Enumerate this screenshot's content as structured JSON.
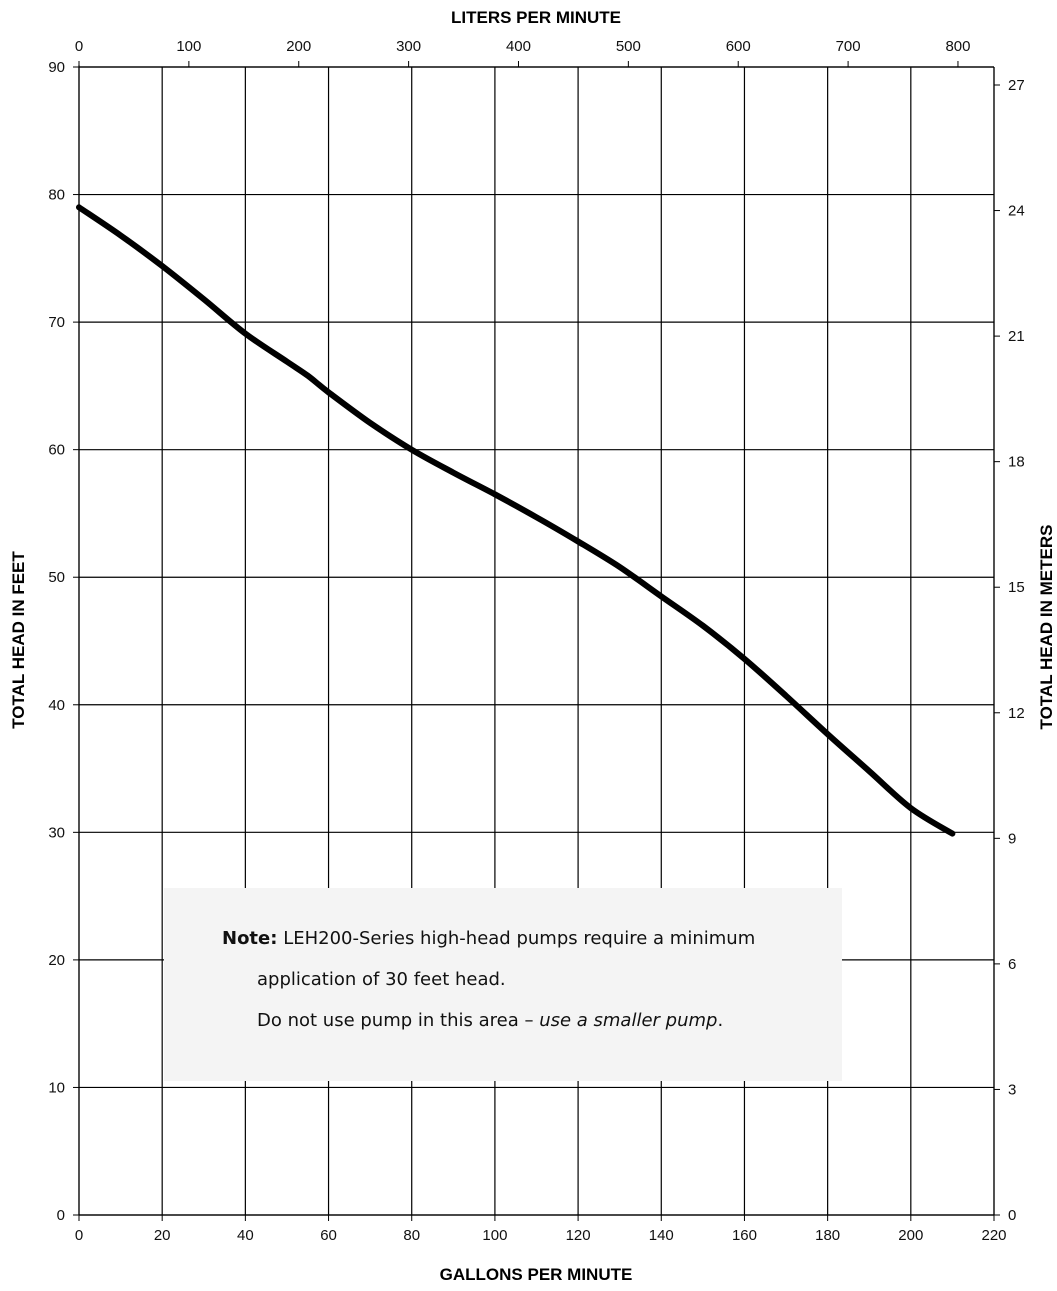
{
  "chart_data": {
    "type": "line",
    "x_top_label": "LITERS  PER MINUTE",
    "x_bottom_label": "GALLONS  PER MINUTE",
    "y_left_label": "TOTAL  HEAD  IN FEET",
    "y_right_label": "TOTAL  HEAD  IN METERS",
    "x_ticks": [
      0,
      20,
      40,
      60,
      80,
      100,
      120,
      140,
      160,
      180,
      200,
      220
    ],
    "x_top_ticks": [
      0,
      100,
      200,
      300,
      400,
      500,
      600,
      700,
      800
    ],
    "y_ticks": [
      0,
      10,
      20,
      30,
      40,
      50,
      60,
      70,
      80,
      90
    ],
    "y_right_ticks": [
      0,
      3,
      6,
      9,
      12,
      15,
      18,
      21,
      24,
      27
    ],
    "xlim": [
      0,
      220
    ],
    "ylim": [
      0,
      90
    ],
    "x_top_lim": [
      0,
      832.8
    ],
    "y_right_lim": [
      0,
      27.43
    ],
    "grid": true,
    "series": [
      {
        "x": [
          0,
          10,
          20,
          30,
          40,
          50,
          55,
          60,
          70,
          80,
          90,
          100,
          110,
          120,
          130,
          140,
          150,
          160,
          170,
          180,
          190,
          200,
          210
        ],
        "y": [
          79,
          76.8,
          74.4,
          71.8,
          69.1,
          66.9,
          65.8,
          64.5,
          62.1,
          60,
          58.2,
          56.5,
          54.7,
          52.8,
          50.8,
          48.5,
          46.2,
          43.6,
          40.7,
          37.7,
          34.8,
          31.9,
          29.9
        ]
      }
    ],
    "colors": {
      "curve": "#000000",
      "grid": "#000000",
      "note_bg": "#f4f4f4"
    }
  },
  "note": {
    "label": "Note:",
    "line1": "LEH200-Series high-head pumps require a minimum",
    "line2": "application of 30 feet head.",
    "line3_prefix": "Do not use pump in this area – ",
    "line3_italic": "use a smaller pump",
    "line3_suffix": "."
  }
}
